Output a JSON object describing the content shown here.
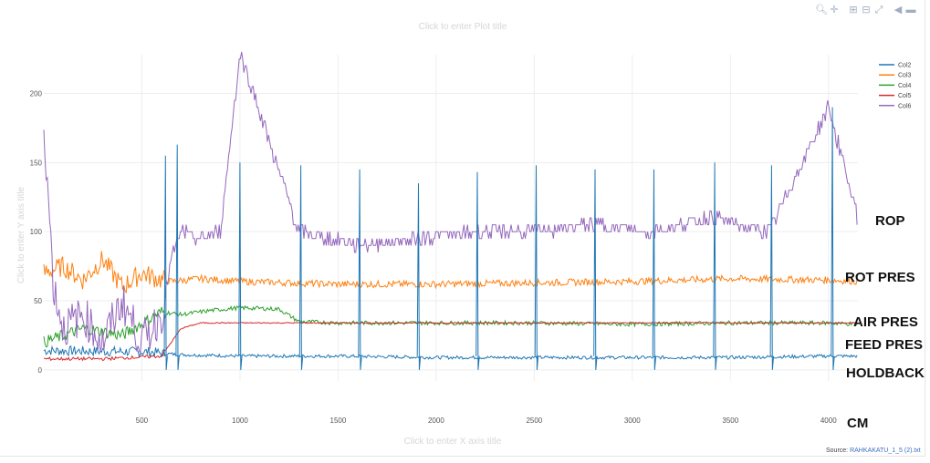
{
  "toolbar": {
    "icons": [
      "zoom-icon",
      "pan-icon",
      "zoom-in-icon",
      "zoom-out-icon",
      "autoscale-icon",
      "reset-axes-icon",
      "hover-closest-icon",
      "hover-compare-icon"
    ]
  },
  "source": {
    "label": "Source:",
    "link_text": "RAHKAKATU_1_5 (2).txt"
  },
  "colors": {
    "Col2": "#1f77b4",
    "Col3": "#ff7f0e",
    "Col4": "#2ca02c",
    "Col5": "#d62728",
    "Col6": "#9467bd"
  },
  "chart_data": {
    "type": "line",
    "title_placeholder": "Click to enter Plot title",
    "xlabel_placeholder": "Click to enter X axis title",
    "ylabel_placeholder": "Click to enter Y axis title",
    "xlim": [
      0,
      4150
    ],
    "ylim": [
      -8,
      228
    ],
    "x_ticks": [
      500,
      1000,
      1500,
      2000,
      2500,
      3000,
      3500,
      4000
    ],
    "y_ticks": [
      0,
      50,
      100,
      150,
      200
    ],
    "grid": true,
    "legend_position": "top-right",
    "series": [
      {
        "name": "Col2",
        "color": "#1f77b4",
        "x": [
          0,
          550,
          600,
          700,
          1000,
          1500,
          2000,
          2500,
          3000,
          3500,
          4000,
          4150
        ],
        "y": [
          14,
          13,
          12,
          11,
          10,
          10,
          9,
          9,
          9,
          9,
          10,
          10
        ]
      },
      {
        "name": "Col3",
        "color": "#ff7f0e",
        "x": [
          0,
          100,
          200,
          300,
          400,
          500,
          600,
          650,
          800,
          1000,
          1500,
          2000,
          2500,
          3000,
          3500,
          4000,
          4150
        ],
        "y": [
          70,
          75,
          65,
          80,
          60,
          70,
          65,
          64,
          66,
          64,
          62,
          62,
          63,
          64,
          66,
          65,
          64
        ]
      },
      {
        "name": "Col4",
        "color": "#2ca02c",
        "x": [
          0,
          200,
          400,
          600,
          700,
          850,
          1000,
          1200,
          1300,
          1500,
          2000,
          2500,
          3000,
          3500,
          4000,
          4150
        ],
        "y": [
          20,
          30,
          25,
          42,
          40,
          43,
          45,
          44,
          35,
          34,
          34,
          34,
          33,
          34,
          34,
          33
        ]
      },
      {
        "name": "Col5",
        "color": "#d62728",
        "x": [
          0,
          300,
          600,
          700,
          800,
          1000,
          1500,
          2000,
          2500,
          3000,
          3500,
          4000,
          4150
        ],
        "y": [
          8,
          8,
          10,
          30,
          34,
          34,
          34,
          34,
          34,
          34,
          34,
          34,
          34
        ]
      },
      {
        "name": "Col6",
        "color": "#9467bd",
        "x": [
          0,
          50,
          100,
          200,
          300,
          400,
          500,
          600,
          650,
          700,
          800,
          900,
          1000,
          1300,
          1600,
          1900,
          2200,
          2500,
          2800,
          3100,
          3400,
          3700,
          4000,
          4150
        ],
        "y": [
          180,
          60,
          30,
          40,
          20,
          50,
          20,
          40,
          80,
          100,
          95,
          100,
          230,
          100,
          90,
          95,
          100,
          100,
          105,
          100,
          110,
          100,
          190,
          110
        ]
      }
    ],
    "spikes": {
      "x": [
        620,
        680,
        1000,
        1310,
        1610,
        1910,
        2210,
        2510,
        2810,
        3110,
        3420,
        3710,
        4020
      ],
      "Col2_peaks": [
        155,
        163,
        150,
        148,
        145,
        135,
        143,
        148,
        145,
        145,
        150,
        148,
        190
      ]
    },
    "annotations": [
      "ROP",
      "ROT PRES",
      "AIR PRES",
      "FEED PRES",
      "HOLDBACK",
      "CM"
    ]
  }
}
